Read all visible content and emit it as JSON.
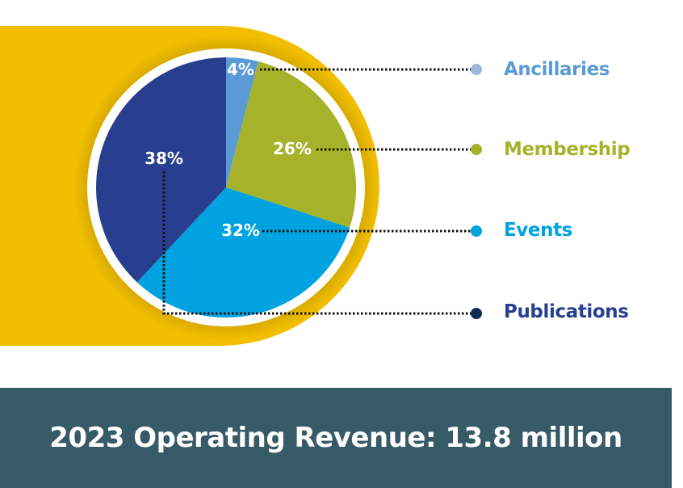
{
  "chart_data": {
    "type": "pie",
    "slices": [
      {
        "label": "Ancillaries",
        "value": 4,
        "value_label": "4%",
        "color": "#5b9bd5",
        "legend_color": "#5b9bd5",
        "dot_color": "#9db7dd"
      },
      {
        "label": "Membership",
        "value": 26,
        "value_label": "26%",
        "color": "#a5b22a",
        "legend_color": "#a5b22a",
        "dot_color": "#a5b22a"
      },
      {
        "label": "Events",
        "value": 32,
        "value_label": "32%",
        "color": "#00a3e0",
        "legend_color": "#00a3e0",
        "dot_color": "#00a3e0"
      },
      {
        "label": "Publications",
        "value": 38,
        "value_label": "38%",
        "color": "#283f8f",
        "legend_color": "#283f8f",
        "dot_color": "#0d2b55"
      }
    ],
    "start_angle_deg": 0,
    "direction": "clockwise",
    "legend_placement": "right"
  },
  "colors": {
    "backdrop": "#f2bf00",
    "backdrop_shadow": "#c9a000",
    "pie_rim": "#ffffff",
    "banner": "#365a66",
    "banner_text": "#ffffff"
  },
  "banner": {
    "text": "2023 Operating Revenue: 13.8 million"
  }
}
